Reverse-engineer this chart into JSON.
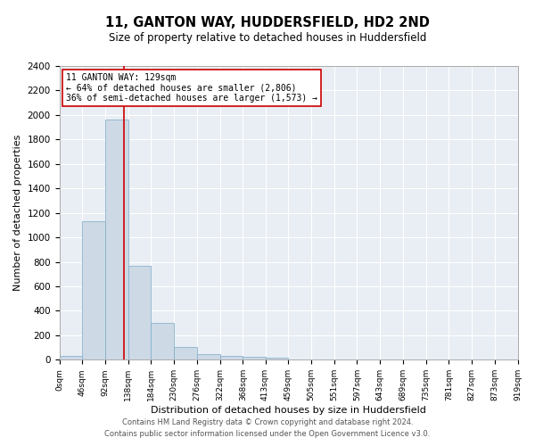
{
  "title": "11, GANTON WAY, HUDDERSFIELD, HD2 2ND",
  "subtitle": "Size of property relative to detached houses in Huddersfield",
  "xlabel": "Distribution of detached houses by size in Huddersfield",
  "ylabel": "Number of detached properties",
  "bar_color": "#cdd9e5",
  "bar_edge_color": "#7aaac8",
  "background_color": "#e8eef4",
  "grid_color": "white",
  "vline_color": "#cc0000",
  "vline_x": 129,
  "annotation_line1": "11 GANTON WAY: 129sqm",
  "annotation_line2": "← 64% of detached houses are smaller (2,806)",
  "annotation_line3": "36% of semi-detached houses are larger (1,573) →",
  "footer_line1": "Contains HM Land Registry data © Crown copyright and database right 2024.",
  "footer_line2": "Contains public sector information licensed under the Open Government Licence v3.0.",
  "bin_edges": [
    0,
    46,
    92,
    138,
    184,
    230,
    276,
    322,
    368,
    413,
    459,
    505,
    551,
    597,
    643,
    689,
    735,
    781,
    827,
    873,
    919
  ],
  "bar_heights": [
    35,
    1130,
    1960,
    770,
    300,
    105,
    45,
    35,
    25,
    20,
    0,
    0,
    0,
    0,
    0,
    0,
    0,
    0,
    0,
    0
  ],
  "ylim": [
    0,
    2400
  ],
  "yticks": [
    0,
    200,
    400,
    600,
    800,
    1000,
    1200,
    1400,
    1600,
    1800,
    2000,
    2200,
    2400
  ]
}
